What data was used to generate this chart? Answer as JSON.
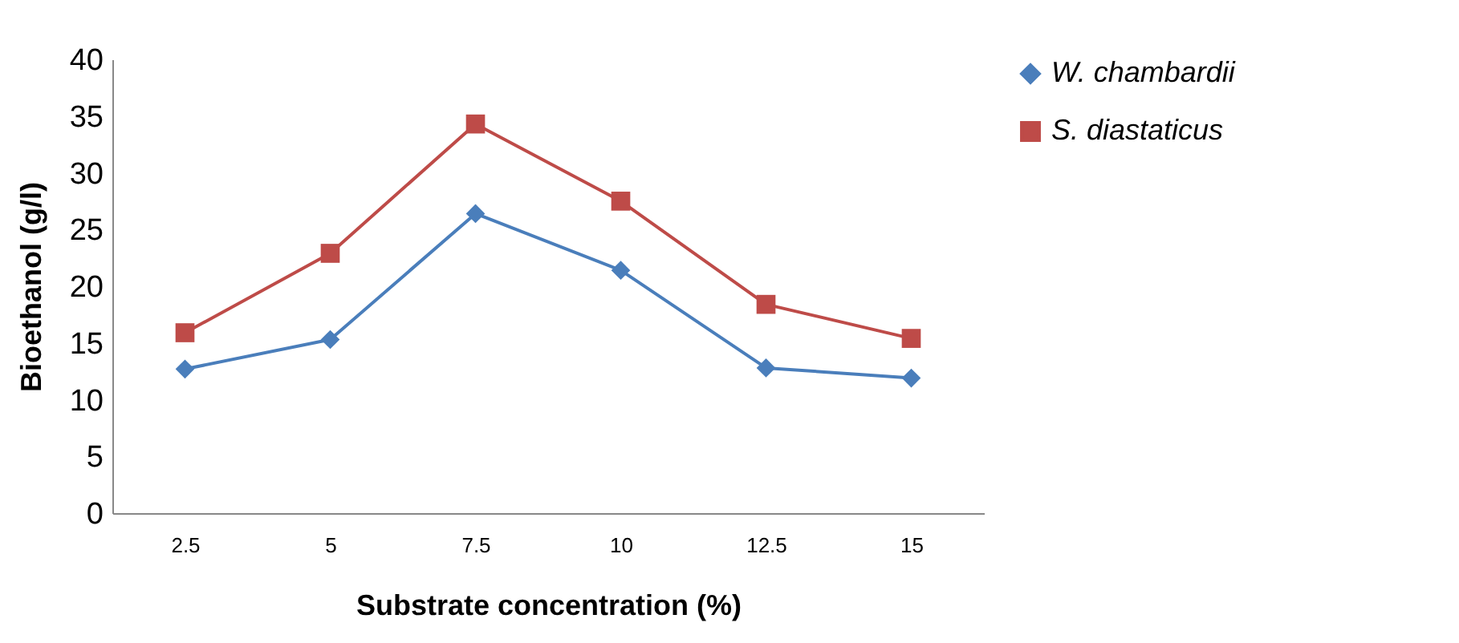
{
  "chart_data": {
    "type": "line",
    "xlabel": "Substrate concentration (%)",
    "ylabel": "Bioethanol (g/l)",
    "categories": [
      "2.5",
      "5",
      "7.5",
      "10",
      "12.5",
      "15"
    ],
    "series": [
      {
        "name": "W. chambardii",
        "color": "#4a7ebb",
        "marker": "diamond",
        "values": [
          12.7,
          15.3,
          26.4,
          21.4,
          12.8,
          11.9
        ]
      },
      {
        "name": "S. diastaticus",
        "color": "#be4b48",
        "marker": "square",
        "values": [
          15.9,
          22.9,
          34.3,
          27.5,
          18.4,
          15.4
        ]
      }
    ],
    "ylim": [
      0,
      40
    ],
    "yticks": [
      0,
      5,
      10,
      15,
      20,
      25,
      30,
      35,
      40
    ],
    "grid": false,
    "legend": "right",
    "line_style": "solid"
  }
}
